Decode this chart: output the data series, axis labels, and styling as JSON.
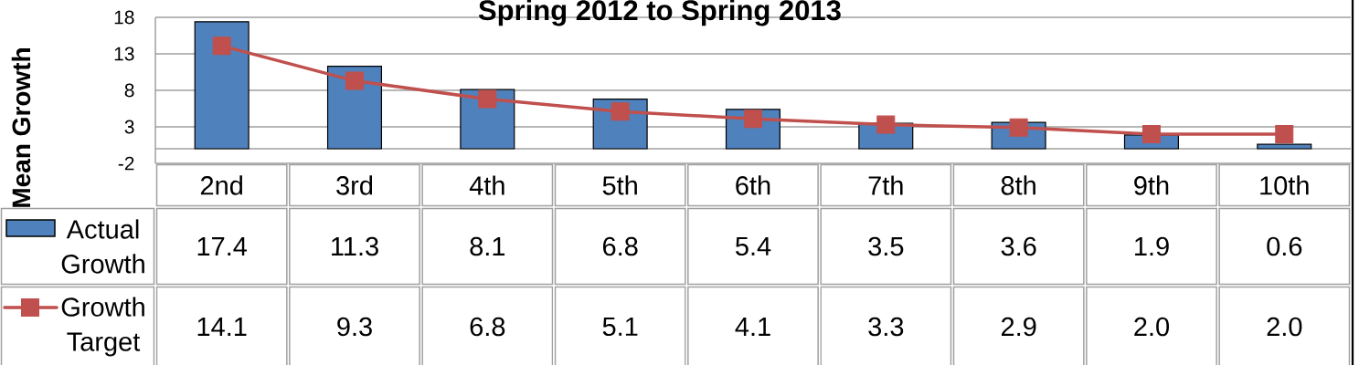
{
  "chart_data": {
    "type": "bar",
    "title": "Spring 2012 to Spring 2013",
    "ylabel": "Mean Growth",
    "categories": [
      "2nd",
      "3rd",
      "4th",
      "5th",
      "6th",
      "7th",
      "8th",
      "9th",
      "10th"
    ],
    "series": [
      {
        "name": "Actual Growth",
        "color": "#4f81bd",
        "values": [
          17.4,
          11.3,
          8.1,
          6.8,
          5.4,
          3.5,
          3.6,
          1.9,
          0.6
        ],
        "value_labels": [
          "17.4",
          "11.3",
          "8.1",
          "6.8",
          "5.4",
          "3.5",
          "3.6",
          "1.9",
          "0.6"
        ]
      },
      {
        "name": "Growth Target",
        "type": "line",
        "color": "#c0504d",
        "marker": "square",
        "values": [
          14.1,
          9.3,
          6.8,
          5.1,
          4.1,
          3.3,
          2.9,
          2.0,
          2.0
        ],
        "value_labels": [
          "14.1",
          "9.3",
          "6.8",
          "5.1",
          "4.1",
          "3.3",
          "2.9",
          "2.0",
          "2.0"
        ]
      }
    ],
    "ylim": [
      -2,
      18
    ],
    "yticks": [
      -2,
      3,
      8,
      13,
      18
    ],
    "grid": "y",
    "legend": "bottom left"
  }
}
